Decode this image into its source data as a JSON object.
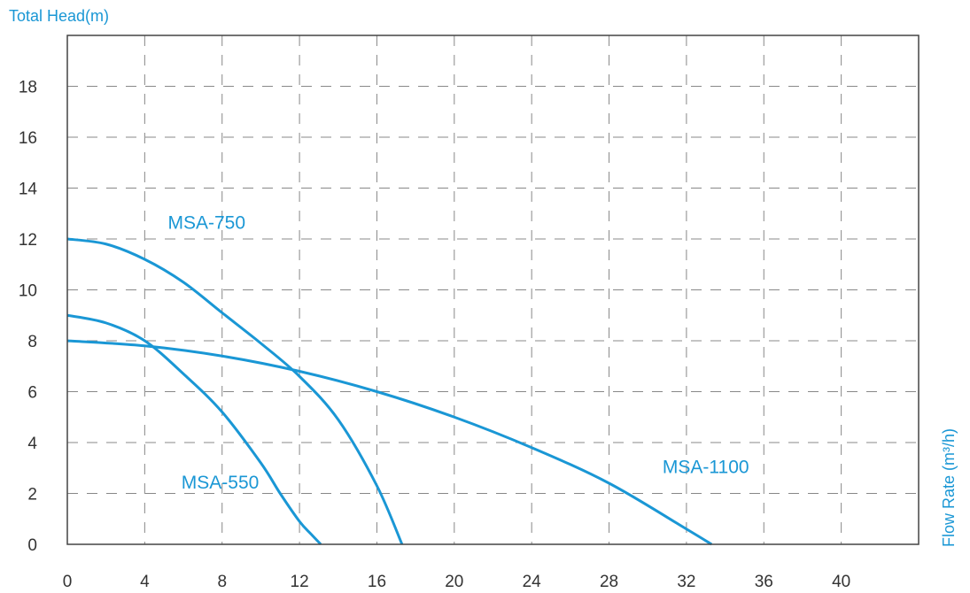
{
  "colors": {
    "accent": "#1a97d5",
    "frame": "#444444",
    "grid": "#888888",
    "tick_text": "#333333"
  },
  "chart_data": {
    "type": "line",
    "title": "",
    "ylabel": "Total Head(m)",
    "xlabel": "Flow Rate (m³/h)",
    "xlim": [
      0,
      44
    ],
    "ylim": [
      0,
      20
    ],
    "x_ticks": [
      0,
      4,
      8,
      12,
      16,
      20,
      24,
      28,
      32,
      36,
      40
    ],
    "y_ticks": [
      0,
      2,
      4,
      6,
      8,
      10,
      12,
      14,
      16,
      18
    ],
    "grid": true,
    "grid_style": "dashed",
    "legend": "none",
    "series": [
      {
        "name": "MSA-550",
        "label_at": [
          7.9,
          2.2
        ],
        "x": [
          0,
          2,
          4,
          6,
          8,
          10,
          11,
          12,
          12.6,
          13.1
        ],
        "y": [
          9.0,
          8.7,
          8.0,
          6.7,
          5.2,
          3.2,
          2.0,
          0.9,
          0.4,
          0
        ]
      },
      {
        "name": "MSA-750",
        "label_at": [
          7.2,
          12.4
        ],
        "x": [
          0,
          2,
          4,
          6,
          8,
          10,
          12,
          14,
          16,
          17.3
        ],
        "y": [
          12.0,
          11.8,
          11.2,
          10.3,
          9.1,
          7.9,
          6.6,
          4.9,
          2.3,
          0
        ]
      },
      {
        "name": "MSA-1100",
        "label_at": [
          33.0,
          2.8
        ],
        "x": [
          0,
          4,
          8,
          12,
          16,
          20,
          24,
          28,
          32,
          33.3
        ],
        "y": [
          8.0,
          7.8,
          7.4,
          6.8,
          6.0,
          5.0,
          3.8,
          2.4,
          0.6,
          0
        ]
      }
    ]
  }
}
